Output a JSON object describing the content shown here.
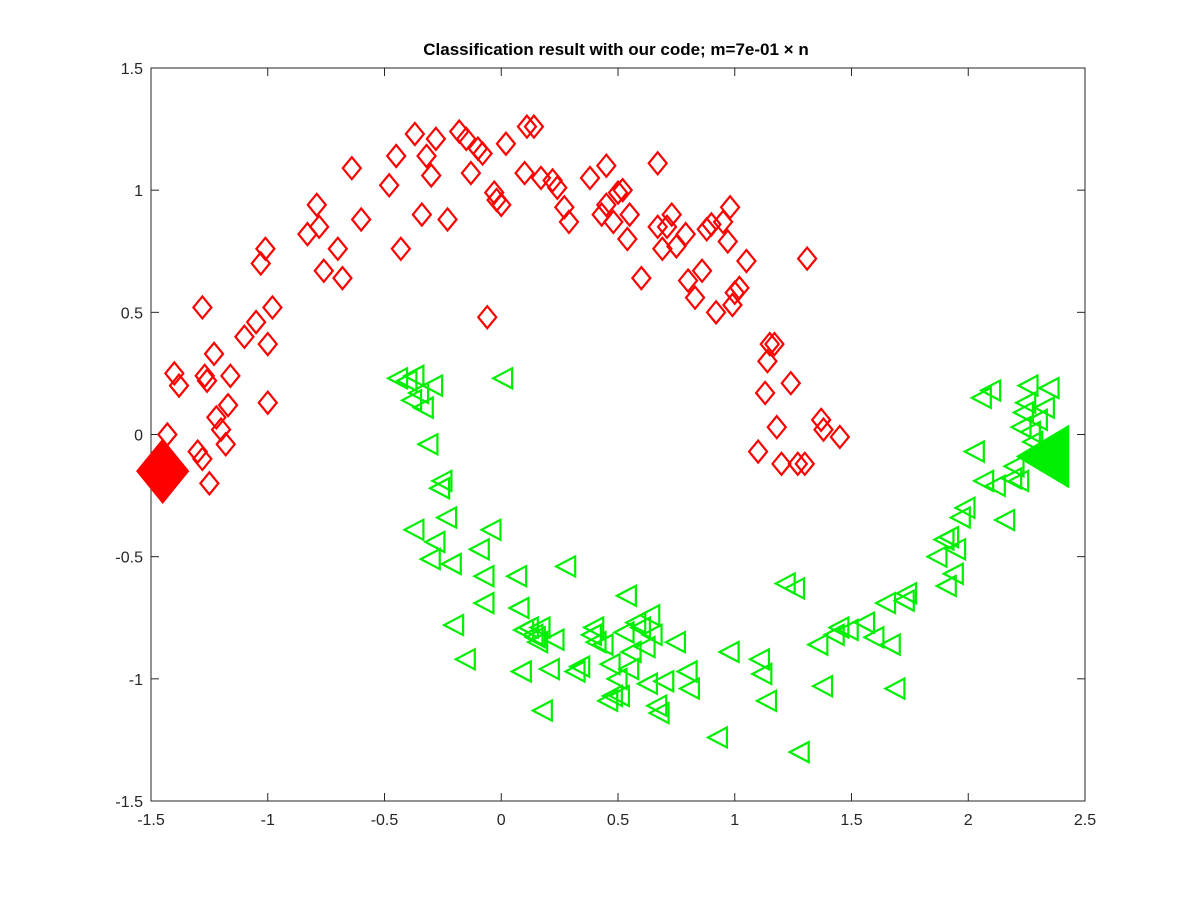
{
  "chart_data": {
    "type": "scatter",
    "title": "Classification result with our code; m=7e-01 × n",
    "xlabel": "",
    "ylabel": "",
    "xlim": [
      -1.5,
      2.5
    ],
    "ylim": [
      -1.5,
      1.5
    ],
    "xticks": [
      -1.5,
      -1,
      -0.5,
      0,
      0.5,
      1,
      1.5,
      2,
      2.5
    ],
    "xtick_labels": [
      "-1.5",
      "-1",
      "-0.5",
      "0",
      "0.5",
      "1",
      "1.5",
      "2",
      "2.5"
    ],
    "yticks": [
      -1.5,
      -1,
      -0.5,
      0,
      0.5,
      1,
      1.5
    ],
    "ytick_labels": [
      "-1.5",
      "-1",
      "-0.5",
      "0",
      "0.5",
      "1",
      "1.5"
    ],
    "grid": false,
    "series": [
      {
        "marker": "diamond-open",
        "color": "#ff0000",
        "points": [
          [
            -1.43,
            0.0
          ],
          [
            -1.4,
            0.25
          ],
          [
            -1.38,
            0.2
          ],
          [
            -1.3,
            -0.07
          ],
          [
            -1.28,
            -0.1
          ],
          [
            -1.27,
            0.24
          ],
          [
            -1.26,
            0.22
          ],
          [
            -1.25,
            -0.2
          ],
          [
            -1.23,
            0.33
          ],
          [
            -1.22,
            0.07
          ],
          [
            -1.2,
            0.02
          ],
          [
            -1.18,
            -0.04
          ],
          [
            -1.17,
            0.12
          ],
          [
            -1.16,
            0.24
          ],
          [
            -1.28,
            0.52
          ],
          [
            -1.1,
            0.4
          ],
          [
            -1.05,
            0.46
          ],
          [
            -1.03,
            0.7
          ],
          [
            -1.01,
            0.76
          ],
          [
            -1.0,
            0.37
          ],
          [
            -1.0,
            0.13
          ],
          [
            -0.98,
            0.52
          ],
          [
            -0.83,
            0.82
          ],
          [
            -0.79,
            0.94
          ],
          [
            -0.78,
            0.85
          ],
          [
            -0.76,
            0.67
          ],
          [
            -0.7,
            0.76
          ],
          [
            -0.68,
            0.64
          ],
          [
            -0.64,
            1.09
          ],
          [
            -0.6,
            0.88
          ],
          [
            -0.48,
            1.02
          ],
          [
            -0.45,
            1.14
          ],
          [
            -0.43,
            0.76
          ],
          [
            -0.37,
            1.23
          ],
          [
            -0.34,
            0.9
          ],
          [
            -0.32,
            1.14
          ],
          [
            -0.3,
            1.06
          ],
          [
            -0.28,
            1.21
          ],
          [
            -0.23,
            0.88
          ],
          [
            -0.18,
            1.24
          ],
          [
            -0.15,
            1.21
          ],
          [
            -0.13,
            1.07
          ],
          [
            -0.1,
            1.17
          ],
          [
            -0.08,
            1.15
          ],
          [
            -0.06,
            0.48
          ],
          [
            -0.03,
            0.99
          ],
          [
            -0.02,
            0.96
          ],
          [
            0.0,
            0.94
          ],
          [
            0.02,
            1.19
          ],
          [
            0.1,
            1.07
          ],
          [
            0.11,
            1.26
          ],
          [
            0.14,
            1.26
          ],
          [
            0.17,
            1.05
          ],
          [
            0.22,
            1.04
          ],
          [
            0.24,
            1.01
          ],
          [
            0.27,
            0.93
          ],
          [
            0.29,
            0.87
          ],
          [
            0.38,
            1.05
          ],
          [
            0.43,
            0.9
          ],
          [
            0.45,
            1.1
          ],
          [
            0.45,
            0.94
          ],
          [
            0.48,
            0.87
          ],
          [
            0.5,
            0.99
          ],
          [
            0.52,
            1.0
          ],
          [
            0.54,
            0.8
          ],
          [
            0.55,
            0.9
          ],
          [
            0.6,
            0.64
          ],
          [
            0.67,
            0.85
          ],
          [
            0.67,
            1.11
          ],
          [
            0.69,
            0.76
          ],
          [
            0.71,
            0.85
          ],
          [
            0.73,
            0.9
          ],
          [
            0.75,
            0.77
          ],
          [
            0.79,
            0.82
          ],
          [
            0.8,
            0.63
          ],
          [
            0.83,
            0.56
          ],
          [
            0.86,
            0.67
          ],
          [
            0.88,
            0.84
          ],
          [
            0.9,
            0.86
          ],
          [
            0.92,
            0.5
          ],
          [
            0.95,
            0.87
          ],
          [
            0.97,
            0.79
          ],
          [
            0.98,
            0.93
          ],
          [
            0.99,
            0.53
          ],
          [
            1.0,
            0.58
          ],
          [
            1.02,
            0.6
          ],
          [
            1.05,
            0.71
          ],
          [
            1.1,
            -0.07
          ],
          [
            1.13,
            0.17
          ],
          [
            1.14,
            0.3
          ],
          [
            1.15,
            0.37
          ],
          [
            1.17,
            0.37
          ],
          [
            1.18,
            0.03
          ],
          [
            1.2,
            -0.12
          ],
          [
            1.24,
            0.21
          ],
          [
            1.27,
            -0.12
          ],
          [
            1.3,
            -0.12
          ],
          [
            1.31,
            0.72
          ],
          [
            1.37,
            0.06
          ],
          [
            1.38,
            0.02
          ],
          [
            1.45,
            -0.01
          ]
        ]
      },
      {
        "marker": "triangle-left-open",
        "color": "#00ee00",
        "points": [
          [
            -0.44,
            0.23
          ],
          [
            -0.4,
            0.22
          ],
          [
            -0.38,
            0.14
          ],
          [
            -0.37,
            0.24
          ],
          [
            -0.35,
            0.17
          ],
          [
            -0.33,
            0.11
          ],
          [
            -0.29,
            0.2
          ],
          [
            -0.31,
            -0.04
          ],
          [
            -0.37,
            -0.39
          ],
          [
            -0.3,
            -0.51
          ],
          [
            -0.28,
            -0.44
          ],
          [
            -0.26,
            -0.22
          ],
          [
            -0.25,
            -0.19
          ],
          [
            -0.23,
            -0.34
          ],
          [
            -0.21,
            -0.53
          ],
          [
            -0.2,
            -0.78
          ],
          [
            -0.15,
            -0.92
          ],
          [
            -0.09,
            -0.47
          ],
          [
            -0.07,
            -0.58
          ],
          [
            -0.07,
            -0.69
          ],
          [
            -0.04,
            -0.39
          ],
          [
            0.01,
            0.23
          ],
          [
            0.07,
            -0.58
          ],
          [
            0.08,
            -0.71
          ],
          [
            0.09,
            -0.97
          ],
          [
            0.1,
            -0.8
          ],
          [
            0.12,
            -0.79
          ],
          [
            0.14,
            -0.82
          ],
          [
            0.15,
            -0.83
          ],
          [
            0.16,
            -0.85
          ],
          [
            0.17,
            -0.79
          ],
          [
            0.18,
            -1.13
          ],
          [
            0.21,
            -0.96
          ],
          [
            0.23,
            -0.84
          ],
          [
            0.28,
            -0.54
          ],
          [
            0.32,
            -0.97
          ],
          [
            0.34,
            -0.95
          ],
          [
            0.39,
            -0.82
          ],
          [
            0.4,
            -0.79
          ],
          [
            0.41,
            -0.85
          ],
          [
            0.44,
            -0.86
          ],
          [
            0.46,
            -1.09
          ],
          [
            0.47,
            -0.94
          ],
          [
            0.48,
            -1.07
          ],
          [
            0.5,
            -1.0
          ],
          [
            0.51,
            -1.07
          ],
          [
            0.53,
            -0.81
          ],
          [
            0.54,
            -0.66
          ],
          [
            0.55,
            -0.96
          ],
          [
            0.56,
            -0.89
          ],
          [
            0.58,
            -0.77
          ],
          [
            0.6,
            -0.79
          ],
          [
            0.62,
            -0.87
          ],
          [
            0.63,
            -1.02
          ],
          [
            0.64,
            -0.74
          ],
          [
            0.65,
            -0.82
          ],
          [
            0.67,
            -1.11
          ],
          [
            0.68,
            -1.14
          ],
          [
            0.7,
            -1.01
          ],
          [
            0.75,
            -0.85
          ],
          [
            0.8,
            -0.97
          ],
          [
            0.81,
            -1.04
          ],
          [
            0.93,
            -1.24
          ],
          [
            0.98,
            -0.89
          ],
          [
            1.11,
            -0.92
          ],
          [
            1.12,
            -0.98
          ],
          [
            1.14,
            -1.09
          ],
          [
            1.22,
            -0.61
          ],
          [
            1.26,
            -0.63
          ],
          [
            1.28,
            -1.3
          ],
          [
            1.36,
            -0.86
          ],
          [
            1.38,
            -1.03
          ],
          [
            1.43,
            -0.82
          ],
          [
            1.45,
            -0.79
          ],
          [
            1.49,
            -0.8
          ],
          [
            1.56,
            -0.77
          ],
          [
            1.6,
            -0.83
          ],
          [
            1.65,
            -0.69
          ],
          [
            1.67,
            -0.86
          ],
          [
            1.69,
            -1.04
          ],
          [
            1.73,
            -0.68
          ],
          [
            1.74,
            -0.65
          ],
          [
            1.87,
            -0.5
          ],
          [
            1.9,
            -0.43
          ],
          [
            1.91,
            -0.62
          ],
          [
            1.92,
            -0.42
          ],
          [
            1.94,
            -0.57
          ],
          [
            1.95,
            -0.47
          ],
          [
            1.97,
            -0.34
          ],
          [
            1.99,
            -0.3
          ],
          [
            2.03,
            -0.07
          ],
          [
            2.06,
            0.15
          ],
          [
            2.1,
            0.18
          ],
          [
            2.07,
            -0.19
          ],
          [
            2.12,
            -0.21
          ],
          [
            2.16,
            -0.35
          ],
          [
            2.19,
            -0.18
          ],
          [
            2.2,
            -0.13
          ],
          [
            2.22,
            -0.19
          ],
          [
            2.23,
            0.03
          ],
          [
            2.24,
            0.09
          ],
          [
            2.25,
            0.13
          ],
          [
            2.26,
            0.2
          ],
          [
            2.27,
            0.01
          ],
          [
            2.28,
            -0.03
          ],
          [
            2.3,
            0.06
          ],
          [
            2.33,
            0.11
          ],
          [
            2.35,
            0.19
          ]
        ]
      }
    ],
    "highlighted": [
      {
        "marker": "diamond-filled",
        "color": "#ff0000",
        "x": -1.45,
        "y": -0.15
      },
      {
        "marker": "triangle-left-filled",
        "color": "#00ee00",
        "x": 2.33,
        "y": -0.09
      }
    ]
  }
}
